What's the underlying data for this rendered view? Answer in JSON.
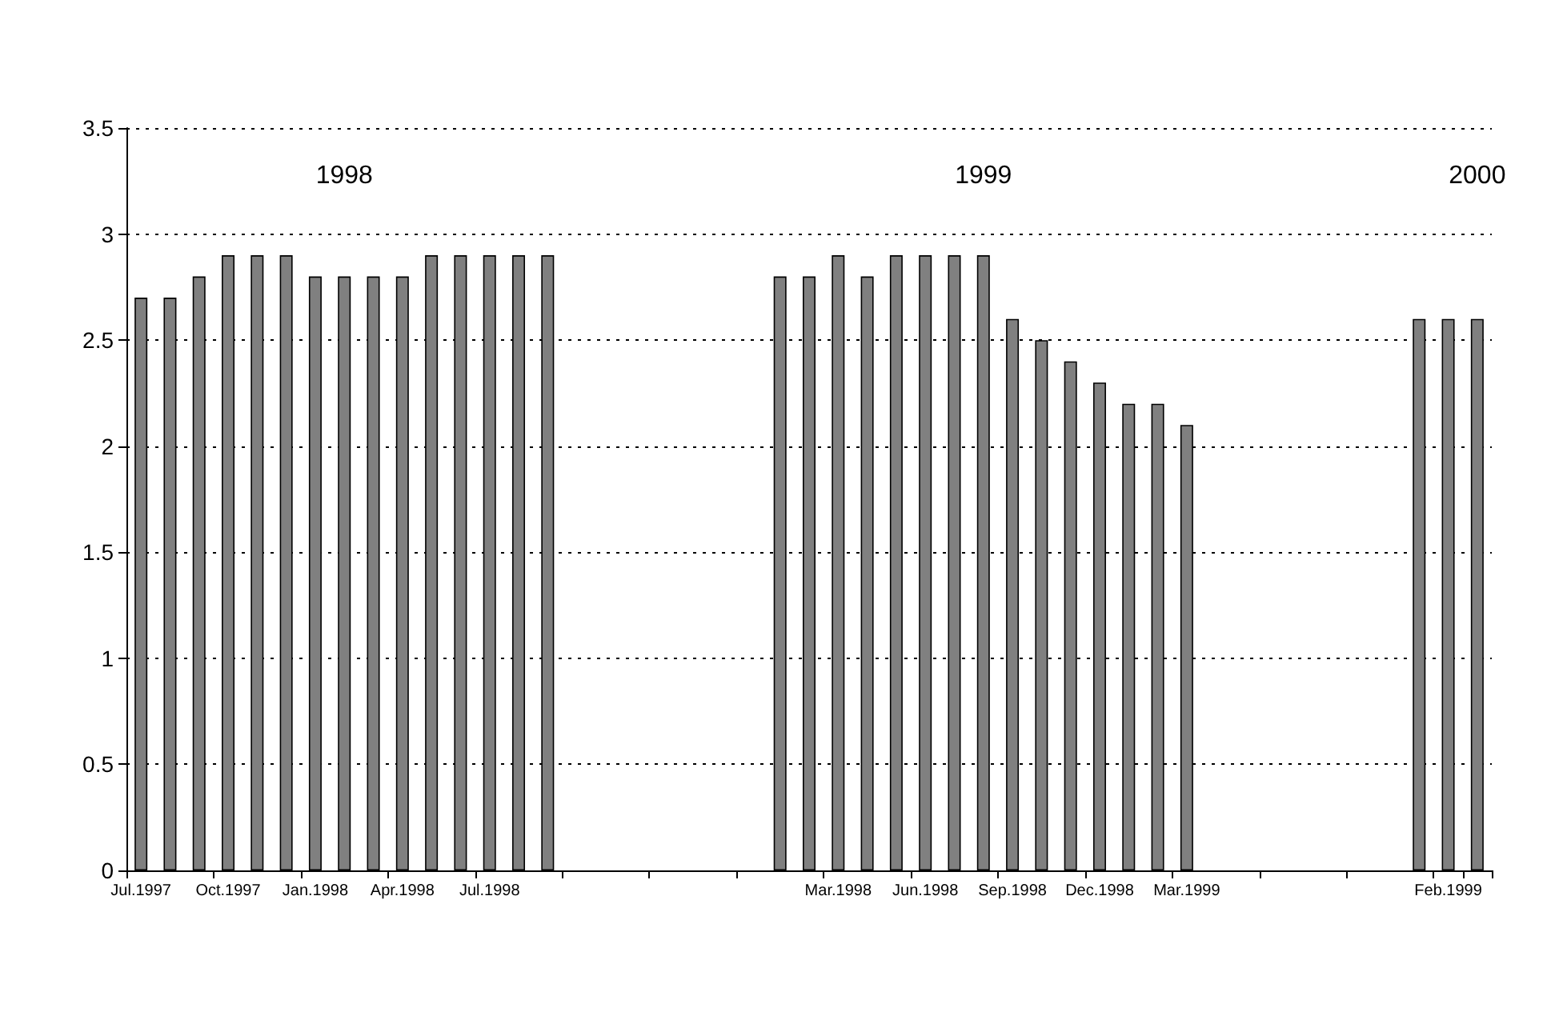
{
  "chart_data": {
    "type": "bar",
    "categories": [
      "Jul.1997",
      null,
      null,
      "Oct.1997",
      null,
      null,
      "Jan.1998",
      null,
      null,
      "Apr.1998",
      null,
      null,
      "Jul.1998",
      null,
      null,
      null,
      null,
      null,
      null,
      null,
      null,
      null,
      null,
      null,
      "Mar.1998",
      null,
      null,
      "Jun.1998",
      null,
      null,
      "Sep.1998",
      null,
      null,
      "Dec.1998",
      null,
      null,
      "Mar.1999",
      null,
      null,
      null,
      null,
      null,
      null,
      null,
      null,
      "Feb.1999",
      null
    ],
    "values": [
      2.7,
      2.7,
      2.8,
      2.9,
      2.9,
      2.9,
      2.8,
      2.8,
      2.8,
      2.8,
      2.9,
      2.9,
      2.9,
      2.9,
      2.9,
      null,
      null,
      null,
      null,
      null,
      null,
      null,
      2.8,
      2.8,
      2.9,
      2.8,
      2.9,
      2.9,
      2.9,
      2.9,
      2.6,
      2.5,
      2.4,
      2.3,
      2.2,
      2.2,
      2.1,
      null,
      null,
      null,
      null,
      null,
      null,
      null,
      2.6,
      2.6,
      2.6
    ],
    "color": "#808080",
    "ylim": [
      0,
      3.5
    ],
    "yticks": [
      0,
      0.5,
      1,
      1.5,
      2,
      2.5,
      3,
      3.5
    ],
    "grid": "y",
    "annotations": [
      "1998",
      "1999",
      "2000"
    ]
  }
}
